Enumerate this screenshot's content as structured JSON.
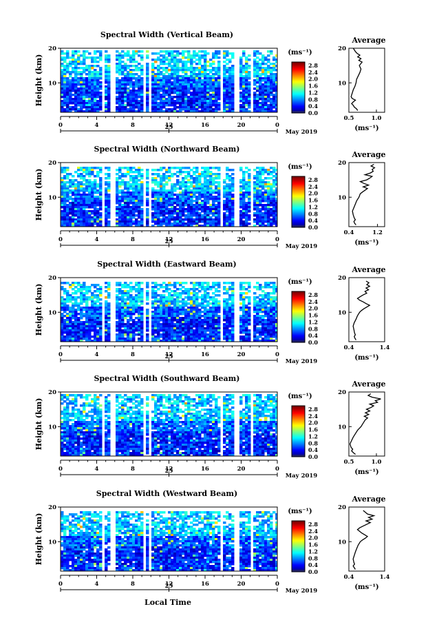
{
  "figure": {
    "x_axis_title": "Local Time",
    "date_label": "May 2019",
    "day_label": "25"
  },
  "chart_data": [
    {
      "type": "heatmap",
      "title": "Spectral Width (Vertical Beam)",
      "ylabel": "Height (km)",
      "x_ticks": [
        "0",
        "4",
        "8",
        "12",
        "16",
        "20",
        "0"
      ],
      "xlim": [
        0,
        24
      ],
      "y_ticks": [
        "20",
        "10"
      ],
      "ylim": [
        1.5,
        20
      ],
      "colorbar_unit": "(ms⁻¹)",
      "colorbar_ticks": [
        "2.8",
        "2.4",
        "2.0",
        "1.6",
        "1.2",
        "0.8",
        "0.4",
        "0.0"
      ],
      "colorbar_range": [
        0,
        3.0
      ],
      "data_gaps_hours": [
        [
          4.3,
          4.7
        ],
        [
          5.3,
          5.8
        ],
        [
          8.9,
          9.3
        ],
        [
          9.7,
          9.9
        ],
        [
          17.5,
          17.8
        ],
        [
          19.2,
          19.6
        ],
        [
          21.0,
          21.2
        ]
      ],
      "data_top_km": 19.5,
      "average": {
        "title": "Average",
        "xlabel": "(ms⁻¹)",
        "x_ticks": [
          "0.5",
          "1.0"
        ],
        "xlim": [
          0.5,
          1.15
        ],
        "y_ticks": [
          "20",
          "10"
        ],
        "profile": [
          [
            0.66,
            2
          ],
          [
            0.64,
            2.5
          ],
          [
            0.6,
            3
          ],
          [
            0.58,
            3.5
          ],
          [
            0.55,
            4
          ],
          [
            0.58,
            4.5
          ],
          [
            0.62,
            5
          ],
          [
            0.56,
            5.5
          ],
          [
            0.54,
            6
          ],
          [
            0.56,
            7
          ],
          [
            0.58,
            8
          ],
          [
            0.61,
            9
          ],
          [
            0.63,
            10
          ],
          [
            0.64,
            11
          ],
          [
            0.67,
            12
          ],
          [
            0.7,
            13
          ],
          [
            0.72,
            14
          ],
          [
            0.69,
            15
          ],
          [
            0.74,
            16
          ],
          [
            0.68,
            16.5
          ],
          [
            0.72,
            17
          ],
          [
            0.66,
            17.5
          ],
          [
            0.7,
            18
          ],
          [
            0.65,
            18.5
          ],
          [
            0.62,
            19
          ],
          [
            0.6,
            19.5
          ],
          [
            0.58,
            20
          ]
        ]
      }
    },
    {
      "type": "heatmap",
      "title": "Spectral Width (Northward Beam)",
      "ylabel": "Height (km)",
      "x_ticks": [
        "0",
        "4",
        "8",
        "12",
        "16",
        "20",
        "0"
      ],
      "xlim": [
        0,
        24
      ],
      "y_ticks": [
        "20",
        "10"
      ],
      "ylim": [
        1.5,
        20
      ],
      "colorbar_unit": "(ms⁻¹)",
      "colorbar_ticks": [
        "2.8",
        "2.4",
        "2.0",
        "1.6",
        "1.2",
        "0.8",
        "0.4",
        "0.0"
      ],
      "colorbar_range": [
        0,
        3.0
      ],
      "data_gaps_hours": [
        [
          4.3,
          4.7
        ],
        [
          5.3,
          5.8
        ],
        [
          8.9,
          9.3
        ],
        [
          9.7,
          9.9
        ],
        [
          17.5,
          17.8
        ],
        [
          19.2,
          19.6
        ],
        [
          21.0,
          21.2
        ]
      ],
      "data_top_km": 19.0,
      "average": {
        "title": "Average",
        "xlabel": "(ms⁻¹)",
        "x_ticks": [
          "0.4",
          "1.2"
        ],
        "xlim": [
          0.4,
          1.4
        ],
        "y_ticks": [
          "20",
          "10"
        ],
        "profile": [
          [
            0.6,
            2
          ],
          [
            0.56,
            2.5
          ],
          [
            0.54,
            3
          ],
          [
            0.58,
            3.5
          ],
          [
            0.55,
            4
          ],
          [
            0.52,
            5
          ],
          [
            0.5,
            6
          ],
          [
            0.54,
            7
          ],
          [
            0.58,
            8
          ],
          [
            0.62,
            9
          ],
          [
            0.68,
            10
          ],
          [
            0.72,
            11
          ],
          [
            0.78,
            11.5
          ],
          [
            0.85,
            12
          ],
          [
            0.92,
            12.5
          ],
          [
            0.8,
            13
          ],
          [
            0.95,
            13.5
          ],
          [
            0.82,
            14
          ],
          [
            0.72,
            14.5
          ],
          [
            0.9,
            15
          ],
          [
            0.98,
            15.5
          ],
          [
            1.05,
            16
          ],
          [
            0.85,
            16.5
          ],
          [
            1.0,
            17
          ],
          [
            1.08,
            17.5
          ],
          [
            1.05,
            18
          ],
          [
            1.12,
            18.5
          ],
          [
            1.02,
            19
          ],
          [
            1.1,
            19.5
          ]
        ]
      }
    },
    {
      "type": "heatmap",
      "title": "Spectral Width (Eastward Beam)",
      "ylabel": "Height (km)",
      "x_ticks": [
        "0",
        "4",
        "8",
        "12",
        "16",
        "20",
        "0"
      ],
      "xlim": [
        0,
        24
      ],
      "y_ticks": [
        "20",
        "10"
      ],
      "ylim": [
        1.5,
        20
      ],
      "colorbar_unit": "(ms⁻¹)",
      "colorbar_ticks": [
        "2.8",
        "2.4",
        "2.0",
        "1.6",
        "1.2",
        "0.8",
        "0.4",
        "0.0"
      ],
      "colorbar_range": [
        0,
        3.0
      ],
      "data_gaps_hours": [
        [
          4.3,
          4.7
        ],
        [
          5.3,
          5.8
        ],
        [
          8.9,
          9.3
        ],
        [
          9.7,
          9.9
        ],
        [
          17.5,
          17.8
        ],
        [
          19.2,
          19.6
        ],
        [
          21.0,
          21.2
        ]
      ],
      "data_top_km": 19.0,
      "average": {
        "title": "Average",
        "xlabel": "(ms⁻¹)",
        "x_ticks": [
          "0.4",
          "1.4"
        ],
        "xlim": [
          0.4,
          1.4
        ],
        "y_ticks": [
          "20",
          "10"
        ],
        "profile": [
          [
            0.6,
            2
          ],
          [
            0.57,
            2.5
          ],
          [
            0.55,
            3
          ],
          [
            0.58,
            3.5
          ],
          [
            0.56,
            4
          ],
          [
            0.54,
            5
          ],
          [
            0.52,
            6
          ],
          [
            0.55,
            7
          ],
          [
            0.6,
            8
          ],
          [
            0.64,
            9
          ],
          [
            0.7,
            10
          ],
          [
            0.75,
            10.5
          ],
          [
            0.82,
            11
          ],
          [
            0.9,
            11.5
          ],
          [
            0.98,
            12
          ],
          [
            0.88,
            12.5
          ],
          [
            0.8,
            13
          ],
          [
            0.7,
            13.5
          ],
          [
            0.64,
            14
          ],
          [
            0.72,
            14.5
          ],
          [
            0.8,
            15
          ],
          [
            0.9,
            15.5
          ],
          [
            0.85,
            16
          ],
          [
            0.95,
            16.5
          ],
          [
            0.88,
            17
          ],
          [
            0.98,
            17.5
          ],
          [
            0.9,
            18
          ],
          [
            0.96,
            18.5
          ],
          [
            0.88,
            19
          ]
        ]
      }
    },
    {
      "type": "heatmap",
      "title": "Spectral Width (Southward Beam)",
      "ylabel": "Height (km)",
      "x_ticks": [
        "0",
        "4",
        "8",
        "12",
        "16",
        "20",
        "0"
      ],
      "xlim": [
        0,
        24
      ],
      "y_ticks": [
        "20",
        "10"
      ],
      "ylim": [
        1.5,
        20
      ],
      "colorbar_unit": "(ms⁻¹)",
      "colorbar_ticks": [
        "2.8",
        "2.4",
        "2.0",
        "1.6",
        "1.2",
        "0.8",
        "0.4",
        "0.0"
      ],
      "colorbar_range": [
        0,
        3.0
      ],
      "data_gaps_hours": [
        [
          4.3,
          4.7
        ],
        [
          5.3,
          5.8
        ],
        [
          8.9,
          9.3
        ],
        [
          9.7,
          9.9
        ],
        [
          17.5,
          17.8
        ],
        [
          19.2,
          19.6
        ],
        [
          21.0,
          21.2
        ]
      ],
      "data_top_km": 19.5,
      "average": {
        "title": "Average",
        "xlabel": "(ms⁻¹)",
        "x_ticks": [
          "0.5",
          "1.0"
        ],
        "xlim": [
          0.5,
          1.15
        ],
        "y_ticks": [
          "20",
          "10"
        ],
        "profile": [
          [
            0.62,
            2
          ],
          [
            0.58,
            2.5
          ],
          [
            0.55,
            3
          ],
          [
            0.57,
            3.5
          ],
          [
            0.54,
            4
          ],
          [
            0.52,
            5
          ],
          [
            0.55,
            6
          ],
          [
            0.58,
            7
          ],
          [
            0.62,
            8
          ],
          [
            0.66,
            9
          ],
          [
            0.72,
            10
          ],
          [
            0.76,
            11
          ],
          [
            0.8,
            12
          ],
          [
            0.84,
            12.5
          ],
          [
            0.78,
            13
          ],
          [
            0.86,
            13.5
          ],
          [
            0.8,
            14
          ],
          [
            0.88,
            14.5
          ],
          [
            0.82,
            15
          ],
          [
            0.9,
            15.5
          ],
          [
            0.95,
            16
          ],
          [
            0.88,
            16.5
          ],
          [
            1.02,
            17
          ],
          [
            0.98,
            17.5
          ],
          [
            1.08,
            18
          ],
          [
            0.92,
            18.5
          ],
          [
            0.85,
            19
          ],
          [
            0.9,
            19.5
          ]
        ]
      }
    },
    {
      "type": "heatmap",
      "title": "Spectral Width (Westward Beam)",
      "ylabel": "Height (km)",
      "x_ticks": [
        "0",
        "4",
        "8",
        "12",
        "16",
        "20",
        "0"
      ],
      "xlim": [
        0,
        24
      ],
      "y_ticks": [
        "20",
        "10"
      ],
      "ylim": [
        1.5,
        20
      ],
      "colorbar_unit": "(ms⁻¹)",
      "colorbar_ticks": [
        "2.8",
        "2.4",
        "2.0",
        "1.6",
        "1.2",
        "0.8",
        "0.4",
        "0.0"
      ],
      "colorbar_range": [
        0,
        3.0
      ],
      "data_gaps_hours": [
        [
          4.3,
          4.7
        ],
        [
          5.3,
          5.8
        ],
        [
          8.9,
          9.3
        ],
        [
          9.7,
          9.9
        ],
        [
          17.5,
          17.8
        ],
        [
          19.2,
          19.6
        ],
        [
          21.0,
          21.2
        ]
      ],
      "data_top_km": 19.0,
      "average": {
        "title": "Average",
        "xlabel": "(ms⁻¹)",
        "x_ticks": [
          "0.4",
          "1.4"
        ],
        "xlim": [
          0.4,
          1.4
        ],
        "y_ticks": [
          "20",
          "10"
        ],
        "profile": [
          [
            0.58,
            2
          ],
          [
            0.55,
            2.5
          ],
          [
            0.52,
            3
          ],
          [
            0.56,
            3.5
          ],
          [
            0.54,
            4
          ],
          [
            0.52,
            5
          ],
          [
            0.55,
            6
          ],
          [
            0.58,
            7
          ],
          [
            0.62,
            8
          ],
          [
            0.66,
            9
          ],
          [
            0.72,
            10
          ],
          [
            0.78,
            10.5
          ],
          [
            0.86,
            11
          ],
          [
            0.92,
            11.5
          ],
          [
            0.84,
            12
          ],
          [
            0.76,
            12.5
          ],
          [
            0.7,
            13
          ],
          [
            0.64,
            13.5
          ],
          [
            0.7,
            14
          ],
          [
            0.8,
            14.5
          ],
          [
            0.9,
            15
          ],
          [
            1.0,
            15.5
          ],
          [
            0.88,
            16
          ],
          [
            1.05,
            16.5
          ],
          [
            0.95,
            17
          ],
          [
            1.1,
            17.5
          ],
          [
            0.92,
            18
          ],
          [
            0.86,
            18.5
          ],
          [
            0.8,
            19
          ]
        ]
      }
    }
  ]
}
